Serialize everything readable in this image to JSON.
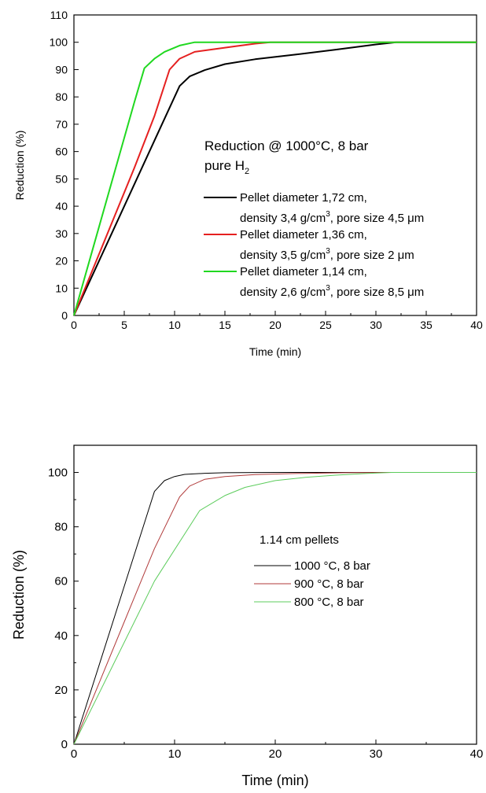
{
  "chart_data": [
    {
      "type": "line",
      "xlabel": "Time (min)",
      "ylabel": "Reduction (%)",
      "xlim": [
        0,
        40
      ],
      "ylim": [
        0,
        110
      ],
      "x_ticks": [
        "0",
        "5",
        "10",
        "15",
        "20",
        "25",
        "30",
        "35",
        "40"
      ],
      "y_ticks": [
        "0",
        "10",
        "20",
        "30",
        "40",
        "50",
        "60",
        "70",
        "80",
        "90",
        "100",
        "110"
      ],
      "annotation": {
        "line1": "Reduction @ 1000°C, 8 bar",
        "line2_prefix": "pure H",
        "line2_sub": "2"
      },
      "legend_position": "center-right",
      "series": [
        {
          "name": "Pellet diameter 1,72 cm,",
          "name_line2_a": "density 3,4 g/cm",
          "name_line2_sup": "3",
          "name_line2_b": ", pore size 4,5 μm",
          "color": "#000000",
          "x": [
            0,
            2,
            4,
            6,
            8,
            9.5,
            10.5,
            11.5,
            13,
            15,
            18,
            22,
            26,
            30,
            32,
            40
          ],
          "y": [
            0,
            16,
            32,
            48,
            64,
            76,
            84,
            87.5,
            89.8,
            92,
            93.8,
            95.5,
            97.3,
            99.2,
            100,
            100
          ]
        },
        {
          "name": "Pellet diameter 1,36 cm,",
          "name_line2_a": "density 3,5 g/cm",
          "name_line2_sup": "3",
          "name_line2_b": ", pore size 2 μm",
          "color": "#e52020",
          "x": [
            0,
            2,
            4,
            6,
            8,
            9.5,
            10.5,
            12,
            14,
            16,
            18,
            19.5,
            40
          ],
          "y": [
            0,
            18,
            36,
            54,
            73,
            90,
            94,
            96.5,
            97.5,
            98.5,
            99.5,
            100,
            100
          ]
        },
        {
          "name": "Pellet diameter 1,14 cm,",
          "name_line2_a": "density 2,6 g/cm",
          "name_line2_sup": "3",
          "name_line2_b": ", pore size 8,5 μm",
          "color": "#20d820",
          "x": [
            0,
            2,
            4,
            6,
            7,
            8,
            9,
            10.5,
            12,
            40
          ],
          "y": [
            0,
            26,
            52,
            78,
            90.5,
            94,
            96.5,
            98.8,
            100,
            100
          ]
        }
      ]
    },
    {
      "type": "line",
      "xlabel": "Time (min)",
      "ylabel": "Reduction (%)",
      "xlim": [
        0,
        40
      ],
      "ylim": [
        0,
        110
      ],
      "x_ticks": [
        "0",
        "10",
        "20",
        "30",
        "40"
      ],
      "y_ticks": [
        "0",
        "20",
        "40",
        "60",
        "80",
        "100"
      ],
      "annotation": {
        "line1": "1.14 cm pellets"
      },
      "legend_position": "center-right",
      "series": [
        {
          "name": "1000 °C, 8 bar",
          "color": "#000000",
          "x": [
            0,
            8,
            9,
            10,
            11,
            13,
            15,
            20,
            40
          ],
          "y": [
            0,
            93,
            97,
            98.5,
            99.3,
            99.7,
            99.9,
            100,
            100
          ]
        },
        {
          "name": "900 °C, 8 bar",
          "color": "#b03a3a",
          "x": [
            0,
            5,
            8,
            10.5,
            11.5,
            13,
            15,
            18,
            22,
            27,
            32,
            40
          ],
          "y": [
            0,
            45,
            72,
            91,
            95,
            97.5,
            98.5,
            99.2,
            99.6,
            99.9,
            100,
            100
          ]
        },
        {
          "name": "800 °C, 8 bar",
          "color": "#5ccc5c",
          "x": [
            0,
            4,
            8,
            12.5,
            15,
            17,
            20,
            23,
            26,
            29,
            31.5,
            40
          ],
          "y": [
            0,
            30,
            60,
            86,
            91.5,
            94.5,
            97,
            98.2,
            99,
            99.6,
            100,
            100
          ]
        }
      ]
    }
  ]
}
